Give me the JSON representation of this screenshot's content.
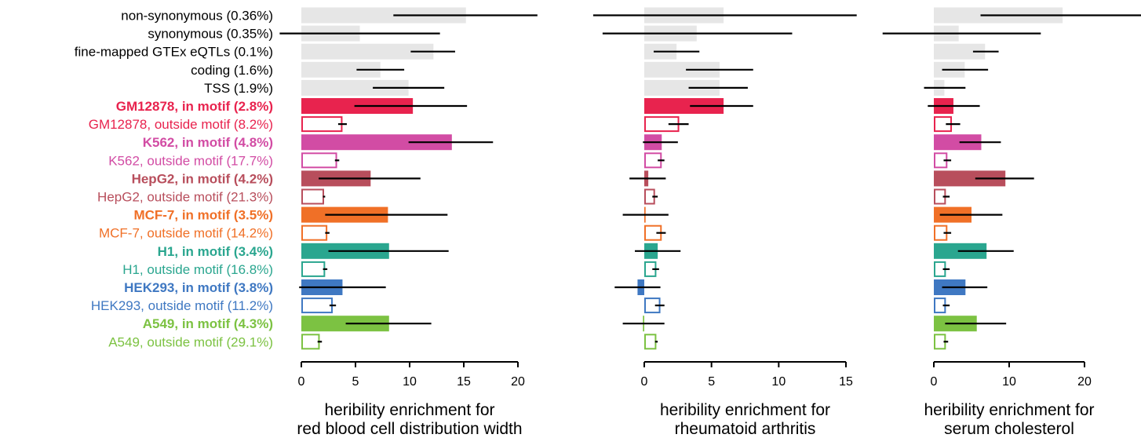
{
  "chart_data": {
    "type": "bar",
    "orientation": "horizontal",
    "categories": [
      {
        "label": "non-synonymous (0.36%)",
        "color": "#222222",
        "style": "baseline"
      },
      {
        "label": "synonymous (0.35%)",
        "color": "#222222",
        "style": "baseline"
      },
      {
        "label": "fine-mapped GTEx eQTLs (0.1%)",
        "color": "#222222",
        "style": "baseline"
      },
      {
        "label": "coding (1.6%)",
        "color": "#222222",
        "style": "baseline"
      },
      {
        "label": "TSS (1.9%)",
        "color": "#222222",
        "style": "baseline"
      },
      {
        "label": "GM12878, in motif (2.8%)",
        "color": "#e8234e",
        "style": "filled"
      },
      {
        "label": "GM12878, outside motif (8.2%)",
        "color": "#e8234e",
        "style": "outline"
      },
      {
        "label": "K562, in motif (4.8%)",
        "color": "#d24ca4",
        "style": "filled"
      },
      {
        "label": "K562, outside motif (17.7%)",
        "color": "#d24ca4",
        "style": "outline"
      },
      {
        "label": "HepG2, in motif (4.2%)",
        "color": "#b84e5c",
        "style": "filled"
      },
      {
        "label": "HepG2, outside motif (21.3%)",
        "color": "#b84e5c",
        "style": "outline"
      },
      {
        "label": "MCF-7, in motif (3.5%)",
        "color": "#f07027",
        "style": "filled"
      },
      {
        "label": "MCF-7, outside motif (14.2%)",
        "color": "#f07027",
        "style": "outline"
      },
      {
        "label": "H1, in motif (3.4%)",
        "color": "#2aa68f",
        "style": "filled"
      },
      {
        "label": "H1, outside motif (16.8%)",
        "color": "#2aa68f",
        "style": "outline"
      },
      {
        "label": "HEK293, in motif (3.8%)",
        "color": "#3f78c2",
        "style": "filled"
      },
      {
        "label": "HEK293, outside motif (11.2%)",
        "color": "#3f78c2",
        "style": "outline"
      },
      {
        "label": "A549, in motif (4.3%)",
        "color": "#7cc242",
        "style": "filled"
      },
      {
        "label": "A549, outside motif (29.1%)",
        "color": "#7cc242",
        "style": "outline"
      }
    ],
    "panels": [
      {
        "xlabel_line1": "heribility enrichment for",
        "xlabel_line2": "red blood cell distribution width",
        "xlim": [
          0,
          20
        ],
        "ticks": [
          "0",
          "5",
          "10",
          "15",
          "20"
        ],
        "values": [
          15.2,
          5.4,
          12.2,
          7.3,
          9.9,
          10.3,
          3.8,
          13.9,
          3.3,
          6.4,
          2.1,
          8.0,
          2.4,
          8.1,
          2.2,
          3.8,
          2.9,
          8.1,
          1.7
        ],
        "err_low": [
          8.5,
          -2.0,
          10.1,
          5.1,
          6.6,
          4.9,
          3.4,
          9.9,
          3.1,
          1.6,
          2.0,
          2.2,
          2.2,
          2.5,
          2.0,
          -0.2,
          2.6,
          4.1,
          1.5
        ],
        "err_high": [
          21.8,
          12.8,
          14.2,
          9.5,
          13.2,
          15.3,
          4.2,
          17.7,
          3.5,
          11.0,
          2.2,
          13.5,
          2.6,
          13.6,
          2.4,
          7.8,
          3.2,
          12.0,
          1.9
        ]
      },
      {
        "xlabel_line1": "heribility enrichment for",
        "xlabel_line2": "rheumatoid arthritis",
        "xlim": [
          0,
          15
        ],
        "ticks": [
          "0",
          "5",
          "10",
          "15"
        ],
        "values": [
          5.9,
          3.9,
          2.4,
          5.6,
          5.6,
          5.9,
          2.6,
          1.3,
          1.3,
          0.3,
          0.8,
          0.1,
          1.3,
          1.0,
          0.9,
          -0.5,
          1.2,
          -0.1,
          0.9
        ],
        "err_low": [
          -3.8,
          -3.1,
          0.7,
          3.1,
          3.3,
          3.4,
          1.8,
          -0.1,
          1.0,
          -1.1,
          0.6,
          -1.6,
          0.9,
          -0.7,
          0.6,
          -2.2,
          0.8,
          -1.6,
          0.8
        ],
        "err_high": [
          15.8,
          11.0,
          4.1,
          8.1,
          7.7,
          8.1,
          3.3,
          2.5,
          1.5,
          1.6,
          1.0,
          1.8,
          1.6,
          2.7,
          1.1,
          1.2,
          1.5,
          1.5,
          1.0
        ]
      },
      {
        "xlabel_line1": "heribility enrichment for",
        "xlabel_line2": "serum cholesterol",
        "xlim": [
          0,
          20
        ],
        "ticks": [
          "0",
          "10",
          "20"
        ],
        "values": [
          17.1,
          3.3,
          6.8,
          4.1,
          1.4,
          2.6,
          2.4,
          6.3,
          1.8,
          9.5,
          1.6,
          5.0,
          1.8,
          7.0,
          1.6,
          4.2,
          1.6,
          5.7,
          1.6
        ],
        "err_low": [
          6.2,
          -6.8,
          5.2,
          1.1,
          -1.3,
          -0.8,
          1.6,
          3.4,
          1.3,
          5.5,
          1.2,
          0.8,
          1.3,
          3.2,
          1.2,
          1.1,
          1.2,
          1.5,
          1.3
        ],
        "err_high": [
          28.0,
          14.2,
          8.6,
          7.2,
          4.2,
          6.1,
          3.5,
          8.9,
          2.3,
          13.3,
          2.1,
          9.1,
          2.3,
          10.6,
          2.1,
          7.1,
          2.1,
          9.6,
          1.9
        ]
      }
    ]
  }
}
